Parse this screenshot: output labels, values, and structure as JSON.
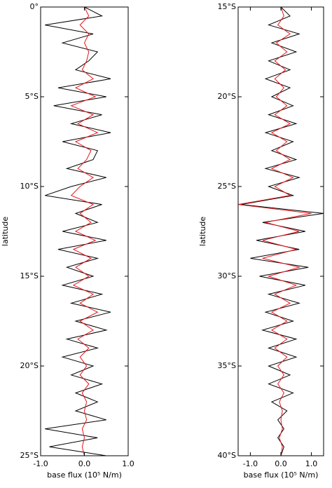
{
  "chart_data": [
    {
      "type": "line",
      "orientation": "vertical",
      "ylabel": "latitude",
      "xlabel": "base flux (10⁵ N/m)",
      "x": [
        0,
        0.5,
        1,
        1.5,
        2,
        2.5,
        3,
        3.5,
        4,
        4.5,
        5,
        5.5,
        6,
        6.5,
        7,
        7.5,
        8,
        8.5,
        9,
        9.5,
        10,
        10.5,
        11,
        11.5,
        12,
        12.5,
        13,
        13.5,
        14,
        14.5,
        15,
        15.5,
        16,
        16.5,
        17,
        17.5,
        18,
        18.5,
        19,
        19.5,
        20,
        20.5,
        21,
        21.5,
        22,
        22.5,
        23,
        23.5,
        24,
        24.5,
        25
      ],
      "series": [
        {
          "color": "#000000",
          "values": [
            0.0,
            0.4,
            -0.9,
            0.2,
            -0.5,
            0.3,
            0.1,
            -0.2,
            0.6,
            -0.6,
            0.5,
            -0.7,
            0.4,
            -0.3,
            0.6,
            -0.5,
            0.3,
            0.2,
            -0.4,
            0.5,
            -0.3,
            -0.9,
            0.4,
            -0.2,
            0.3,
            -0.5,
            0.5,
            -0.6,
            0.3,
            -0.4,
            0.2,
            -0.5,
            0.4,
            -0.3,
            0.6,
            -0.2,
            0.5,
            -0.4,
            0.3,
            -0.5,
            0.2,
            -0.3,
            0.4,
            -0.2,
            0.3,
            -0.2,
            0.5,
            -0.9,
            0.3,
            -0.8,
            0.5
          ]
        },
        {
          "color": "#e8141a",
          "values": [
            0.0,
            0.1,
            -0.1,
            0.1,
            0.0,
            0.1,
            0.05,
            -0.05,
            0.2,
            -0.2,
            0.25,
            -0.3,
            0.2,
            -0.15,
            0.3,
            -0.2,
            0.15,
            0.05,
            -0.15,
            0.2,
            -0.1,
            -0.3,
            0.2,
            -0.1,
            0.15,
            -0.2,
            0.25,
            -0.25,
            0.15,
            -0.2,
            0.1,
            -0.25,
            0.2,
            -0.1,
            0.3,
            -0.1,
            0.2,
            -0.15,
            0.1,
            -0.1,
            0.05,
            -0.1,
            0.1,
            -0.05,
            0.05,
            0.0,
            0.05,
            -0.05,
            0.0,
            -0.05,
            0.0
          ]
        }
      ],
      "xlim": [
        -1,
        1
      ],
      "xticks": [
        {
          "value": -1,
          "label": "-1.0"
        },
        {
          "value": 0,
          "label": "0.0"
        },
        {
          "value": 1,
          "label": "1.0"
        }
      ],
      "ylim": [
        0,
        25
      ],
      "yticks": [
        {
          "value": 0,
          "label": "0°"
        },
        {
          "value": 5,
          "label": "5°S"
        },
        {
          "value": 10,
          "label": "10°S"
        },
        {
          "value": 15,
          "label": "15°S"
        },
        {
          "value": 20,
          "label": "20°S"
        },
        {
          "value": 25,
          "label": "25°S"
        }
      ]
    },
    {
      "type": "line",
      "orientation": "vertical",
      "ylabel": "latitude",
      "xlabel": "base flux (10⁵ N/m)",
      "x": [
        15,
        15.5,
        16,
        16.5,
        17,
        17.5,
        18,
        18.5,
        19,
        19.5,
        20,
        20.5,
        21,
        21.5,
        22,
        22.5,
        23,
        23.5,
        24,
        24.5,
        25,
        25.5,
        26,
        26.5,
        27,
        27.5,
        28,
        28.5,
        29,
        29.5,
        30,
        30.5,
        31,
        31.5,
        32,
        32.5,
        33,
        33.5,
        34,
        34.5,
        35,
        35.5,
        36,
        36.5,
        37,
        37.5,
        38,
        38.5,
        39,
        39.5,
        40
      ],
      "series": [
        {
          "color": "#000000",
          "values": [
            0.0,
            0.3,
            -0.4,
            0.6,
            -0.3,
            0.5,
            -0.4,
            0.3,
            -0.5,
            0.3,
            -0.3,
            0.4,
            -0.4,
            0.5,
            -0.5,
            0.4,
            -0.3,
            0.5,
            -0.5,
            0.6,
            -0.4,
            0.4,
            -1.3,
            1.4,
            -0.6,
            0.8,
            -0.8,
            0.6,
            -1.0,
            0.9,
            -0.7,
            0.8,
            -0.4,
            0.6,
            -0.5,
            0.4,
            -0.6,
            0.5,
            -0.4,
            0.5,
            -0.4,
            0.3,
            -0.4,
            0.4,
            -0.3,
            0.2,
            -0.1,
            0.1,
            -0.1,
            0.1,
            0.0
          ]
        },
        {
          "color": "#e8141a",
          "values": [
            0.0,
            0.1,
            -0.1,
            0.3,
            -0.15,
            0.2,
            -0.2,
            0.15,
            -0.2,
            0.1,
            -0.15,
            0.2,
            -0.2,
            0.3,
            -0.3,
            0.2,
            -0.15,
            0.3,
            -0.3,
            0.4,
            -0.2,
            0.3,
            -1.4,
            1.0,
            -0.5,
            0.6,
            -0.6,
            0.5,
            -0.6,
            0.6,
            -0.4,
            0.5,
            -0.2,
            0.3,
            -0.3,
            0.2,
            -0.3,
            0.2,
            -0.2,
            0.2,
            -0.1,
            0.1,
            -0.1,
            0.1,
            -0.05,
            0.05,
            0.0,
            0.05,
            -0.05,
            0.05,
            0.0
          ]
        }
      ],
      "xlim": [
        -1.4,
        1.4
      ],
      "xticks": [
        {
          "value": -1,
          "label": "-1.0"
        },
        {
          "value": 0,
          "label": "0.0"
        },
        {
          "value": 1,
          "label": "1.0"
        }
      ],
      "ylim": [
        15,
        40
      ],
      "yticks": [
        {
          "value": 15,
          "label": "15°S"
        },
        {
          "value": 20,
          "label": "20°S"
        },
        {
          "value": 25,
          "label": "25°S"
        },
        {
          "value": 30,
          "label": "30°S"
        },
        {
          "value": 35,
          "label": "35°S"
        },
        {
          "value": 40,
          "label": "40°S"
        }
      ]
    }
  ]
}
